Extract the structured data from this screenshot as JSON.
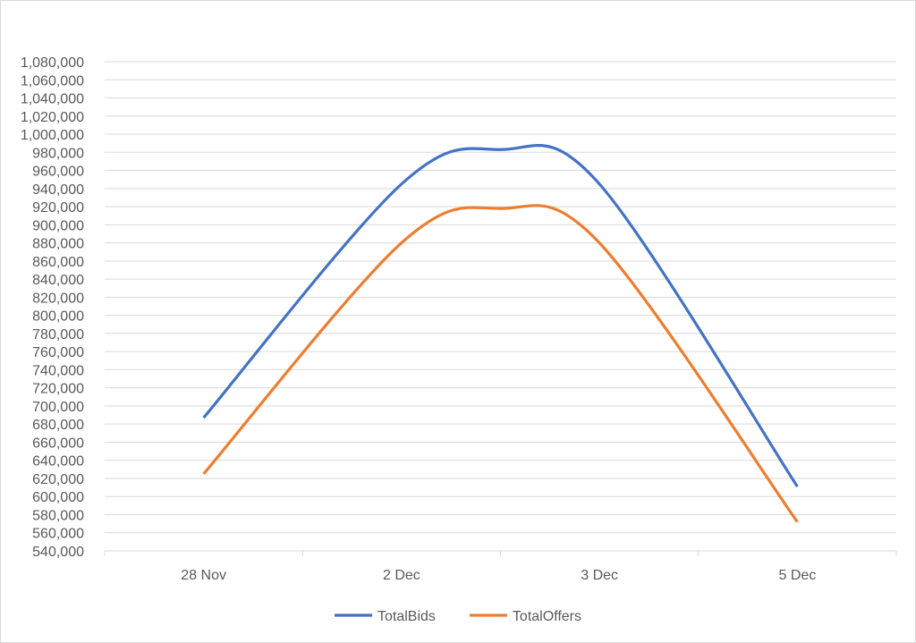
{
  "chart_data": {
    "type": "line",
    "title": "",
    "xlabel": "",
    "ylabel": "",
    "categories": [
      "28 Nov",
      "2 Dec",
      "3 Dec",
      "5 Dec"
    ],
    "x": [
      0,
      1,
      1.5,
      2,
      3
    ],
    "ylim": [
      540000,
      1080000
    ],
    "ytick_step": 20000,
    "yticks": [
      "540,000",
      "560,000",
      "580,000",
      "600,000",
      "620,000",
      "640,000",
      "660,000",
      "680,000",
      "700,000",
      "720,000",
      "740,000",
      "760,000",
      "780,000",
      "800,000",
      "820,000",
      "840,000",
      "860,000",
      "880,000",
      "900,000",
      "920,000",
      "940,000",
      "960,000",
      "980,000",
      "1,000,000",
      "1,020,000",
      "1,040,000",
      "1,060,000",
      "1,080,000"
    ],
    "grid": true,
    "legend_position": "bottom",
    "series": [
      {
        "name": "TotalBids",
        "color": "#4472C4",
        "values": [
          687000,
          945000,
          983000,
          945000,
          611000
        ]
      },
      {
        "name": "TotalOffers",
        "color": "#ED7D31",
        "values": [
          625000,
          880000,
          918000,
          880000,
          572000
        ]
      }
    ]
  }
}
